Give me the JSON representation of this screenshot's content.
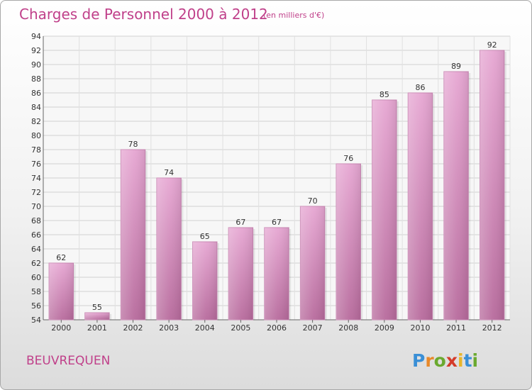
{
  "chart_data": {
    "type": "bar",
    "title": "Charges de Personnel 2000 à 2012",
    "subtitle": "(en milliers d'€)",
    "categories": [
      "2000",
      "2001",
      "2002",
      "2003",
      "2004",
      "2005",
      "2006",
      "2007",
      "2008",
      "2009",
      "2010",
      "2011",
      "2012"
    ],
    "values": [
      62,
      55,
      78,
      74,
      65,
      67,
      67,
      70,
      76,
      85,
      86,
      89,
      92
    ],
    "ylim": [
      54,
      94
    ],
    "yticks": [
      54,
      56,
      58,
      60,
      62,
      64,
      66,
      68,
      70,
      72,
      74,
      76,
      78,
      80,
      82,
      84,
      86,
      88,
      90,
      92,
      94
    ],
    "grid": true,
    "bar_color": "#d68fbd"
  },
  "commune": "BEUVREQUEN",
  "brand": {
    "letters": [
      {
        "ch": "P",
        "color": "#3a8fd6"
      },
      {
        "ch": "r",
        "color": "#e8892a"
      },
      {
        "ch": "o",
        "color": "#6aa92f"
      },
      {
        "ch": "x",
        "color": "#d43b2a"
      },
      {
        "ch": "i",
        "color": "#e8b52a"
      },
      {
        "ch": "t",
        "color": "#3a8fd6"
      },
      {
        "ch": "i",
        "color": "#6aa92f"
      }
    ]
  }
}
